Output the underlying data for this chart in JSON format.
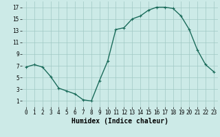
{
  "x": [
    0,
    1,
    2,
    3,
    4,
    5,
    6,
    7,
    8,
    9,
    10,
    11,
    12,
    13,
    14,
    15,
    16,
    17,
    18,
    19,
    20,
    21,
    22,
    23
  ],
  "y": [
    6.8,
    7.2,
    6.8,
    5.2,
    3.2,
    2.7,
    2.2,
    1.2,
    1.0,
    4.5,
    7.8,
    13.2,
    13.5,
    15.0,
    15.5,
    16.5,
    17.0,
    17.0,
    16.8,
    15.5,
    13.2,
    9.7,
    7.2,
    6.0
  ],
  "line_color": "#1a6b5a",
  "marker": "+",
  "bg_color": "#cceae7",
  "grid_color": "#a0c8c4",
  "xlabel": "Humidex (Indice chaleur)",
  "xlim": [
    -0.5,
    23.5
  ],
  "ylim": [
    0,
    18
  ],
  "yticks": [
    1,
    3,
    5,
    7,
    9,
    11,
    13,
    15,
    17
  ],
  "xticks": [
    0,
    1,
    2,
    3,
    4,
    5,
    6,
    7,
    8,
    9,
    10,
    11,
    12,
    13,
    14,
    15,
    16,
    17,
    18,
    19,
    20,
    21,
    22,
    23
  ],
  "tick_fontsize": 5.5,
  "label_fontsize": 7.0,
  "marker_size": 3,
  "linewidth": 1.0
}
